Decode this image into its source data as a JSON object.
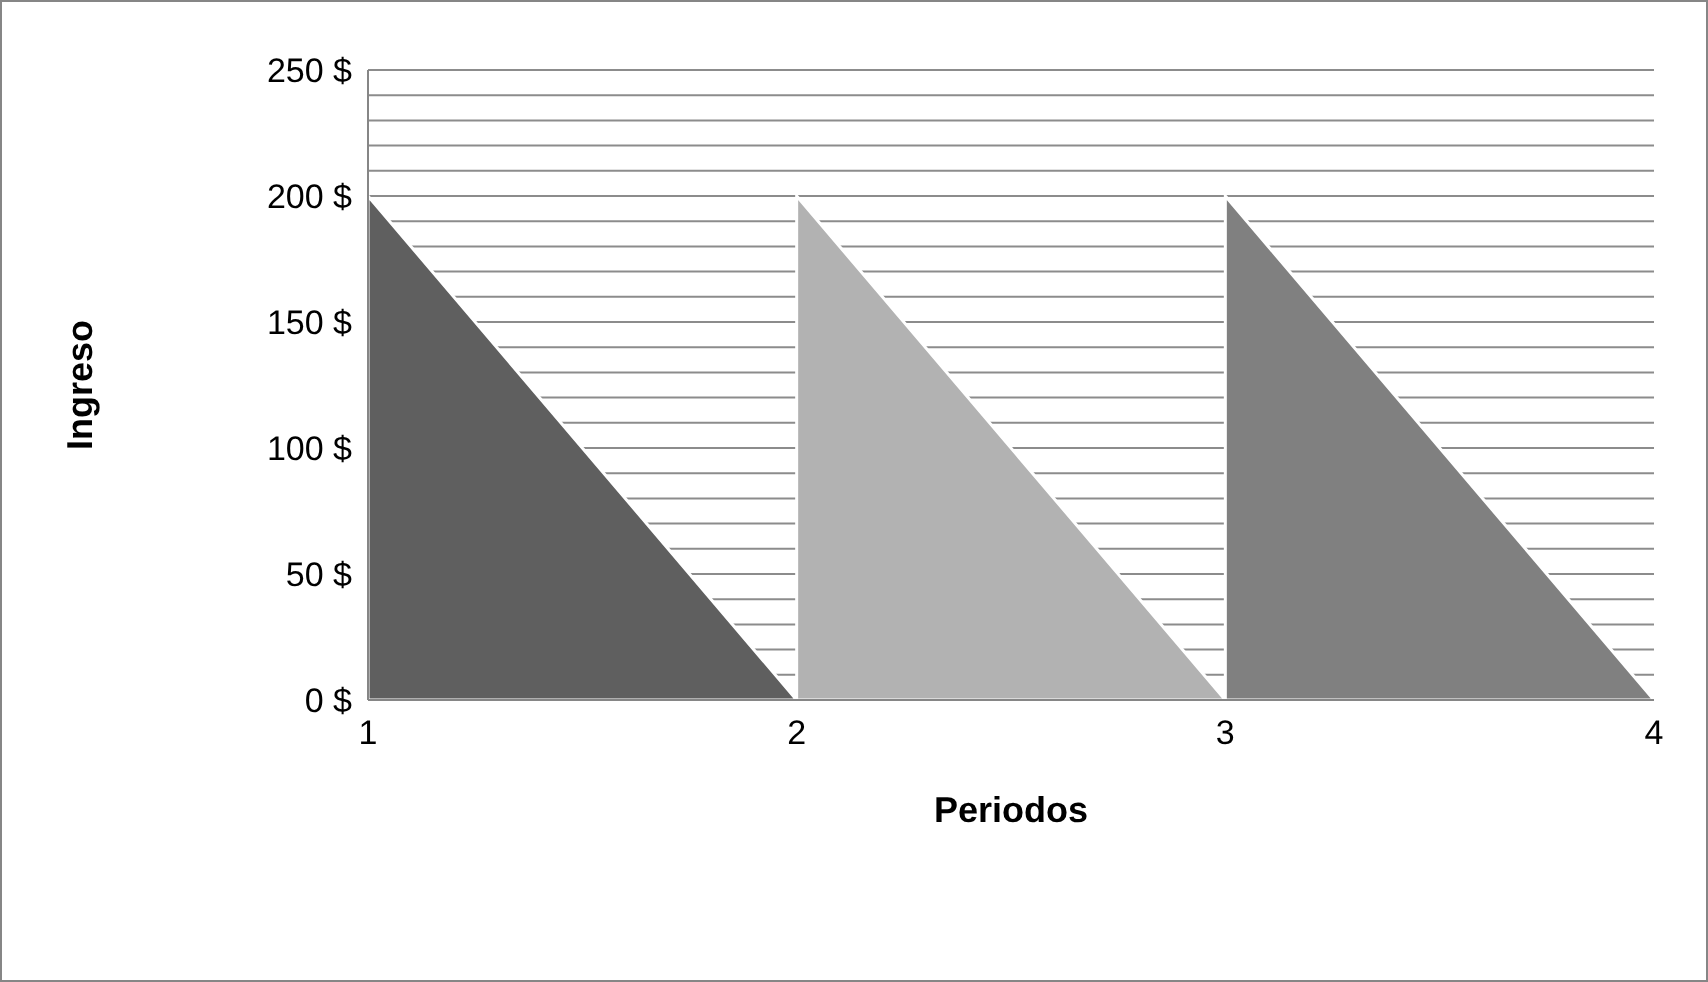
{
  "chart_data": {
    "type": "area",
    "xlabel": "Periodos",
    "ylabel": "Ingreso",
    "series": [
      {
        "color": "#5f5f5f",
        "x": [
          1,
          2
        ],
        "values": [
          200,
          0
        ]
      },
      {
        "color": "#b2b2b2",
        "x": [
          2,
          3
        ],
        "values": [
          200,
          0
        ]
      },
      {
        "color": "#808080",
        "x": [
          3,
          4
        ],
        "values": [
          200,
          0
        ]
      }
    ],
    "xlim": [
      1,
      4
    ],
    "xticks": [
      1,
      2,
      3,
      4
    ],
    "ylim": [
      0,
      250
    ],
    "yticks": [
      {
        "value": 0,
        "label": "0 $"
      },
      {
        "value": 10,
        "label": null
      },
      {
        "value": 20,
        "label": null
      },
      {
        "value": 30,
        "label": null
      },
      {
        "value": 40,
        "label": null
      },
      {
        "value": 50,
        "label": "50 $"
      },
      {
        "value": 60,
        "label": null
      },
      {
        "value": 70,
        "label": null
      },
      {
        "value": 80,
        "label": null
      },
      {
        "value": 90,
        "label": null
      },
      {
        "value": 100,
        "label": "100 $"
      },
      {
        "value": 110,
        "label": null
      },
      {
        "value": 120,
        "label": null
      },
      {
        "value": 130,
        "label": null
      },
      {
        "value": 140,
        "label": null
      },
      {
        "value": 150,
        "label": "150 $"
      },
      {
        "value": 160,
        "label": null
      },
      {
        "value": 170,
        "label": null
      },
      {
        "value": 180,
        "label": null
      },
      {
        "value": 190,
        "label": null
      },
      {
        "value": 200,
        "label": "200 $"
      },
      {
        "value": 210,
        "label": null
      },
      {
        "value": 220,
        "label": null
      },
      {
        "value": 230,
        "label": null
      },
      {
        "value": 240,
        "label": null
      },
      {
        "value": 250,
        "label": "250 $"
      }
    ],
    "grid": "y"
  }
}
